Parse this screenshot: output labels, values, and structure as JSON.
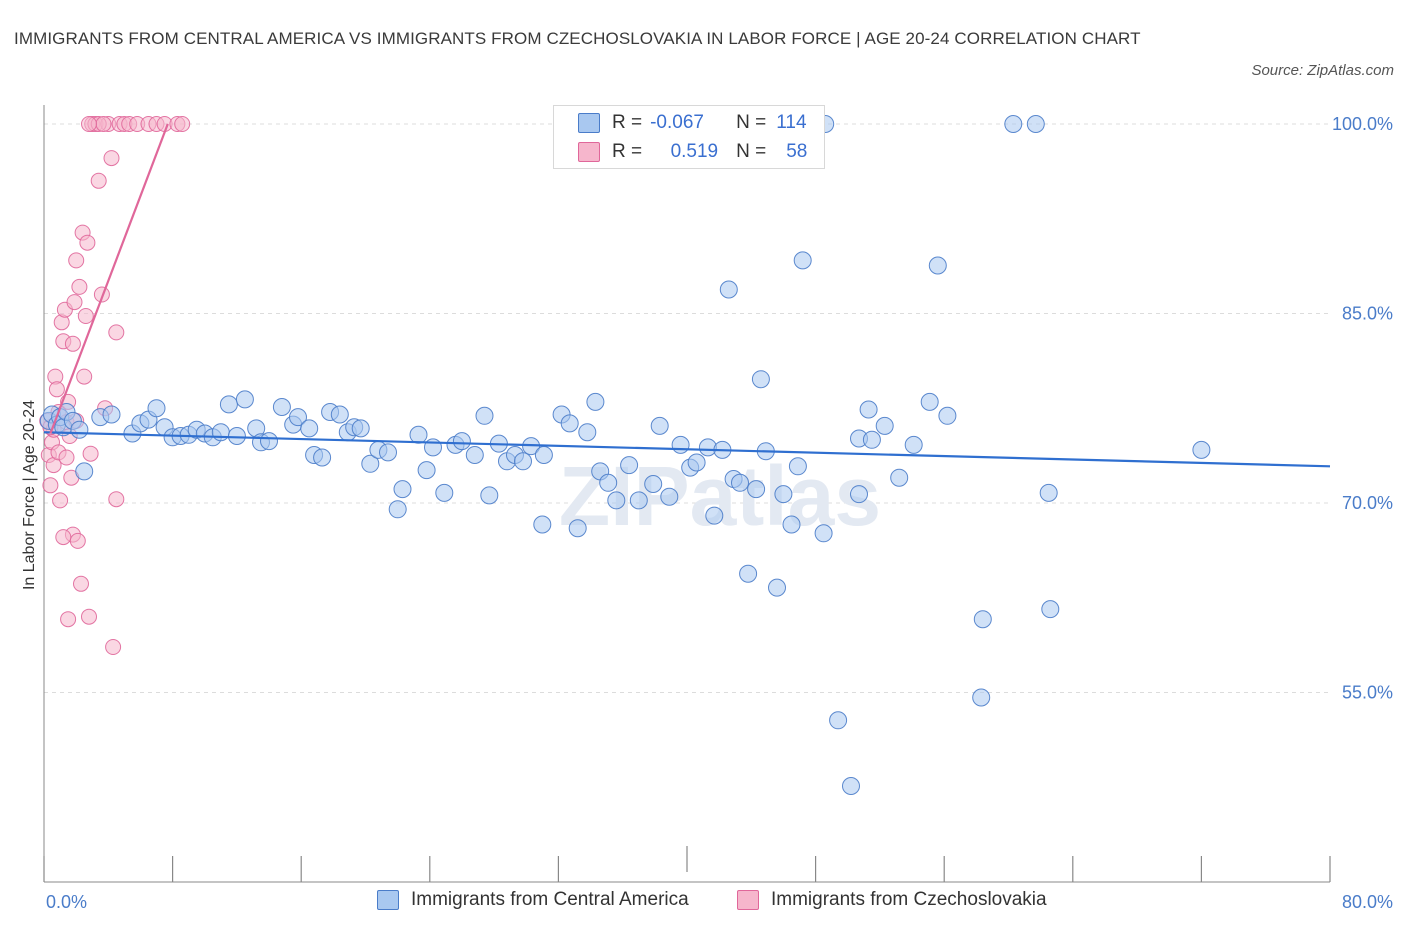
{
  "title": "IMMIGRANTS FROM CENTRAL AMERICA VS IMMIGRANTS FROM CZECHOSLOVAKIA IN LABOR FORCE | AGE 20-24 CORRELATION CHART",
  "source": "Source: ZipAtlas.com",
  "watermark": "ZIPatlas",
  "colors": {
    "blue": "#4a7cc9",
    "blue_fill": "#a9c8f0",
    "pink": "#e0679a",
    "pink_fill": "#f6b6cc"
  },
  "legend": {
    "rows": [
      {
        "r_label": "R =",
        "r_value": "-0.067",
        "n_label": "N =",
        "n_value": "114"
      },
      {
        "r_label": "R =",
        "r_value": "0.519",
        "n_label": "N =",
        "n_value": "58"
      }
    ]
  },
  "chart_data": {
    "type": "scatter",
    "title": "IMMIGRANTS FROM CENTRAL AMERICA VS IMMIGRANTS FROM CZECHOSLOVAKIA IN LABOR FORCE | AGE 20-24 CORRELATION CHART",
    "xlabel": "",
    "ylabel": "In Labor Force | Age 20-24",
    "xlim": [
      0,
      80
    ],
    "ylim": [
      40,
      101.5
    ],
    "x_tick_labels": [
      "0.0%",
      "80.0%"
    ],
    "y_ticks": [
      55,
      70,
      85,
      100
    ],
    "y_tick_labels": [
      "55.0%",
      "70.0%",
      "85.0%",
      "100.0%"
    ],
    "grid": "horizontal dashed",
    "legend_position": "top-center and bottom",
    "series": [
      {
        "name": "Immigrants from Central America",
        "color": "blue",
        "R": -0.067,
        "N": 114,
        "trend": [
          [
            0,
            75.6
          ],
          [
            80,
            72.9
          ]
        ],
        "points": [
          [
            0.3,
            76.5
          ],
          [
            0.5,
            77.0
          ],
          [
            0.8,
            76.2
          ],
          [
            1.0,
            76.8
          ],
          [
            1.2,
            76.0
          ],
          [
            1.4,
            77.2
          ],
          [
            1.8,
            76.5
          ],
          [
            2.2,
            75.8
          ],
          [
            2.5,
            72.5
          ],
          [
            3.5,
            76.8
          ],
          [
            4.2,
            77.0
          ],
          [
            5.5,
            75.5
          ],
          [
            6.0,
            76.3
          ],
          [
            6.5,
            76.6
          ],
          [
            7.0,
            77.5
          ],
          [
            7.5,
            76.0
          ],
          [
            8.0,
            75.2
          ],
          [
            8.5,
            75.3
          ],
          [
            9.0,
            75.4
          ],
          [
            9.5,
            75.8
          ],
          [
            10.0,
            75.5
          ],
          [
            10.5,
            75.2
          ],
          [
            11.0,
            75.6
          ],
          [
            11.5,
            77.8
          ],
          [
            12.0,
            75.3
          ],
          [
            12.5,
            78.2
          ],
          [
            13.2,
            75.9
          ],
          [
            13.5,
            74.8
          ],
          [
            14.0,
            74.9
          ],
          [
            14.8,
            77.6
          ],
          [
            15.5,
            76.2
          ],
          [
            15.8,
            76.8
          ],
          [
            16.5,
            75.9
          ],
          [
            16.8,
            73.8
          ],
          [
            17.3,
            73.6
          ],
          [
            17.8,
            77.2
          ],
          [
            18.4,
            77.0
          ],
          [
            18.9,
            75.6
          ],
          [
            19.3,
            76.0
          ],
          [
            19.7,
            75.9
          ],
          [
            20.3,
            73.1
          ],
          [
            20.8,
            74.2
          ],
          [
            21.4,
            74.0
          ],
          [
            22.3,
            71.1
          ],
          [
            22.0,
            69.5
          ],
          [
            23.3,
            75.4
          ],
          [
            23.8,
            72.6
          ],
          [
            24.2,
            74.4
          ],
          [
            24.9,
            70.8
          ],
          [
            25.6,
            74.6
          ],
          [
            26.0,
            74.9
          ],
          [
            26.8,
            73.8
          ],
          [
            27.4,
            76.9
          ],
          [
            27.7,
            70.6
          ],
          [
            28.3,
            74.7
          ],
          [
            28.8,
            73.3
          ],
          [
            29.3,
            73.8
          ],
          [
            29.8,
            73.3
          ],
          [
            30.3,
            74.5
          ],
          [
            31.0,
            68.3
          ],
          [
            31.1,
            73.8
          ],
          [
            32.2,
            77.0
          ],
          [
            32.7,
            76.3
          ],
          [
            33.2,
            68.0
          ],
          [
            33.8,
            75.6
          ],
          [
            34.3,
            78.0
          ],
          [
            34.6,
            72.5
          ],
          [
            35.1,
            71.6
          ],
          [
            35.6,
            70.2
          ],
          [
            36.4,
            73.0
          ],
          [
            37.0,
            70.2
          ],
          [
            37.9,
            71.5
          ],
          [
            38.3,
            76.1
          ],
          [
            38.9,
            70.5
          ],
          [
            39.6,
            74.6
          ],
          [
            40.2,
            72.8
          ],
          [
            40.6,
            73.2
          ],
          [
            41.3,
            74.4
          ],
          [
            41.7,
            69.0
          ],
          [
            42.2,
            74.2
          ],
          [
            42.6,
            86.9
          ],
          [
            42.9,
            71.9
          ],
          [
            43.3,
            71.6
          ],
          [
            43.8,
            64.4
          ],
          [
            44.3,
            71.1
          ],
          [
            44.6,
            79.8
          ],
          [
            44.9,
            74.1
          ],
          [
            45.6,
            63.3
          ],
          [
            46.0,
            70.7
          ],
          [
            46.5,
            68.3
          ],
          [
            46.9,
            72.9
          ],
          [
            47.2,
            89.2
          ],
          [
            48.0,
            100.0
          ],
          [
            48.6,
            100.0
          ],
          [
            48.5,
            67.6
          ],
          [
            49.4,
            52.8
          ],
          [
            50.2,
            47.6
          ],
          [
            50.7,
            70.7
          ],
          [
            50.7,
            75.1
          ],
          [
            51.3,
            77.4
          ],
          [
            51.5,
            75.0
          ],
          [
            52.3,
            76.1
          ],
          [
            53.2,
            72.0
          ],
          [
            54.1,
            74.6
          ],
          [
            55.1,
            78.0
          ],
          [
            55.6,
            88.8
          ],
          [
            56.2,
            76.9
          ],
          [
            58.3,
            54.6
          ],
          [
            58.4,
            60.8
          ],
          [
            60.3,
            100.0
          ],
          [
            61.7,
            100.0
          ],
          [
            62.5,
            70.8
          ],
          [
            62.6,
            61.6
          ],
          [
            72.0,
            74.2
          ]
        ]
      },
      {
        "name": "Immigrants from Czechoslovakia",
        "color": "pink",
        "R": 0.519,
        "N": 58,
        "trend": [
          [
            0.4,
            75.5
          ],
          [
            7.7,
            100.0
          ]
        ],
        "points": [
          [
            0.2,
            76.5
          ],
          [
            0.3,
            73.8
          ],
          [
            0.4,
            71.4
          ],
          [
            0.5,
            74.8
          ],
          [
            0.6,
            73.0
          ],
          [
            0.7,
            80.0
          ],
          [
            0.8,
            79.0
          ],
          [
            0.9,
            77.2
          ],
          [
            1.0,
            70.2
          ],
          [
            1.1,
            84.3
          ],
          [
            1.2,
            82.8
          ],
          [
            1.3,
            85.3
          ],
          [
            1.4,
            76.4
          ],
          [
            1.5,
            78.0
          ],
          [
            1.6,
            75.3
          ],
          [
            1.7,
            72.0
          ],
          [
            1.8,
            67.5
          ],
          [
            1.9,
            85.9
          ],
          [
            2.0,
            89.2
          ],
          [
            2.1,
            67.0
          ],
          [
            2.2,
            87.1
          ],
          [
            2.3,
            63.6
          ],
          [
            2.4,
            91.4
          ],
          [
            2.5,
            80.0
          ],
          [
            2.6,
            84.8
          ],
          [
            2.7,
            90.6
          ],
          [
            2.8,
            61.0
          ],
          [
            2.9,
            73.9
          ],
          [
            3.0,
            100.0
          ],
          [
            3.2,
            100.0
          ],
          [
            3.4,
            95.5
          ],
          [
            3.6,
            86.5
          ],
          [
            3.8,
            77.5
          ],
          [
            4.0,
            100.0
          ],
          [
            4.2,
            97.3
          ],
          [
            4.3,
            58.6
          ],
          [
            4.5,
            83.5
          ],
          [
            4.7,
            100.0
          ],
          [
            5.0,
            100.0
          ],
          [
            5.3,
            100.0
          ],
          [
            5.8,
            100.0
          ],
          [
            6.5,
            100.0
          ],
          [
            7.0,
            100.0
          ],
          [
            7.5,
            100.0
          ],
          [
            8.3,
            100.0
          ],
          [
            8.6,
            100.0
          ],
          [
            1.5,
            60.8
          ],
          [
            0.9,
            74.0
          ],
          [
            1.2,
            67.3
          ],
          [
            0.6,
            75.8
          ],
          [
            4.5,
            70.3
          ],
          [
            1.4,
            73.6
          ],
          [
            2.0,
            76.5
          ],
          [
            3.4,
            100.0
          ],
          [
            3.7,
            100.0
          ],
          [
            2.8,
            100.0
          ],
          [
            1.8,
            82.6
          ],
          [
            0.4,
            76.0
          ]
        ]
      }
    ]
  },
  "bottom_legend": [
    {
      "label": "Immigrants from Central America",
      "color": "blue"
    },
    {
      "label": "Immigrants from Czechoslovakia",
      "color": "pink"
    }
  ]
}
